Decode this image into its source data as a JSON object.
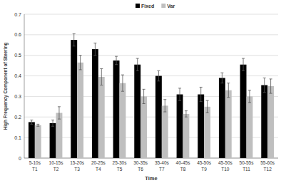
{
  "chart_data": {
    "type": "bar",
    "x_label": "Time",
    "y_label": "High Frequency Component of Steering",
    "categories": [
      "5-10s\nT1",
      "10-15s\nT2",
      "15-20s\nT3",
      "20-25s\nT4",
      "25-30s\nT5",
      "30-35s\nT6",
      "35-40s\nT7",
      "40-45s\nT8",
      "45-50s\nT9",
      "45-50s\nT10",
      "50-55s\nT11",
      "55-60s\nT12"
    ],
    "series": [
      {
        "name": "Fixed",
        "color": "#000000",
        "values": [
          0.175,
          0.17,
          0.575,
          0.53,
          0.475,
          0.455,
          0.4,
          0.31,
          0.31,
          0.39,
          0.455,
          0.355
        ],
        "errors": [
          0.01,
          0.015,
          0.03,
          0.03,
          0.02,
          0.03,
          0.025,
          0.03,
          0.035,
          0.025,
          0.03,
          0.035
        ]
      },
      {
        "name": "Var",
        "color": "#bfbfbf",
        "values": [
          0.16,
          0.22,
          0.465,
          0.395,
          0.365,
          0.3,
          0.255,
          0.215,
          0.25,
          0.33,
          0.3,
          0.35
        ],
        "errors": [
          0.005,
          0.03,
          0.035,
          0.04,
          0.04,
          0.035,
          0.03,
          0.015,
          0.03,
          0.035,
          0.03,
          0.035
        ]
      }
    ],
    "ylim": [
      0,
      0.7
    ],
    "yticks": [
      0,
      0.1,
      0.2,
      0.3,
      0.4,
      0.5,
      0.6,
      0.7
    ],
    "grid": true,
    "legend": "top"
  }
}
